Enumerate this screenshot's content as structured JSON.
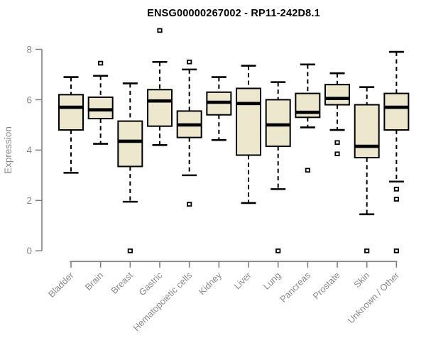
{
  "chart_data": {
    "type": "boxplot",
    "title": "ENSG00000267002 - RP11-242D8.1",
    "ylabel": "Expression",
    "xlabel": "",
    "ylim": [
      0,
      8
    ],
    "yticks": [
      0,
      2,
      4,
      6,
      8
    ],
    "grid": false,
    "legend": "none",
    "categories": [
      "Bladder",
      "Brain",
      "Breast",
      "Gastric",
      "Hematopoietic cells",
      "Kidney",
      "Liver",
      "Lung",
      "Pancreas",
      "Prostate",
      "Skin",
      "Unknown / Other"
    ],
    "series": [
      {
        "name": "Bladder",
        "whisker_low": 3.1,
        "q1": 4.8,
        "median": 5.7,
        "q3": 6.2,
        "whisker_high": 6.9,
        "outliers": []
      },
      {
        "name": "Brain",
        "whisker_low": 4.25,
        "q1": 5.25,
        "median": 5.6,
        "q3": 6.1,
        "whisker_high": 6.95,
        "outliers": [
          7.45
        ]
      },
      {
        "name": "Breast",
        "whisker_low": 1.95,
        "q1": 3.35,
        "median": 4.35,
        "q3": 5.15,
        "whisker_high": 6.65,
        "outliers": [
          0
        ]
      },
      {
        "name": "Gastric",
        "whisker_low": 4.2,
        "q1": 4.95,
        "median": 5.95,
        "q3": 6.4,
        "whisker_high": 7.5,
        "outliers": [
          8.75
        ]
      },
      {
        "name": "Hematopoietic cells",
        "whisker_low": 3.0,
        "q1": 4.5,
        "median": 5.0,
        "q3": 5.55,
        "whisker_high": 7.2,
        "outliers": [
          7.5,
          1.85
        ]
      },
      {
        "name": "Kidney",
        "whisker_low": 4.4,
        "q1": 5.4,
        "median": 5.9,
        "q3": 6.3,
        "whisker_high": 6.9,
        "outliers": []
      },
      {
        "name": "Liver",
        "whisker_low": 1.9,
        "q1": 3.8,
        "median": 5.85,
        "q3": 6.45,
        "whisker_high": 7.35,
        "outliers": []
      },
      {
        "name": "Lung",
        "whisker_low": 2.45,
        "q1": 4.15,
        "median": 5.0,
        "q3": 6.0,
        "whisker_high": 6.7,
        "outliers": [
          0
        ]
      },
      {
        "name": "Pancreas",
        "whisker_low": 4.9,
        "q1": 5.3,
        "median": 5.5,
        "q3": 6.25,
        "whisker_high": 7.4,
        "outliers": [
          3.2
        ]
      },
      {
        "name": "Prostate",
        "whisker_low": 4.8,
        "q1": 5.8,
        "median": 6.05,
        "q3": 6.6,
        "whisker_high": 7.05,
        "outliers": [
          4.3,
          3.85
        ]
      },
      {
        "name": "Skin",
        "whisker_low": 1.45,
        "q1": 3.7,
        "median": 4.15,
        "q3": 5.8,
        "whisker_high": 6.5,
        "outliers": [
          0
        ]
      },
      {
        "name": "Unknown / Other",
        "whisker_low": 2.75,
        "q1": 4.8,
        "median": 5.7,
        "q3": 6.25,
        "whisker_high": 7.9,
        "outliers": [
          2.45,
          2.05,
          0
        ]
      }
    ],
    "colors": {
      "box_fill": "#EDE8CD",
      "box_border": "#000000",
      "median": "#000000",
      "whisker": "#000000",
      "outlier_stroke": "#000000",
      "outlier_fill": "#ffffff",
      "axis": "#808080",
      "tick_label": "#8A8A8A",
      "title": "#000000",
      "background": "#ffffff"
    }
  }
}
